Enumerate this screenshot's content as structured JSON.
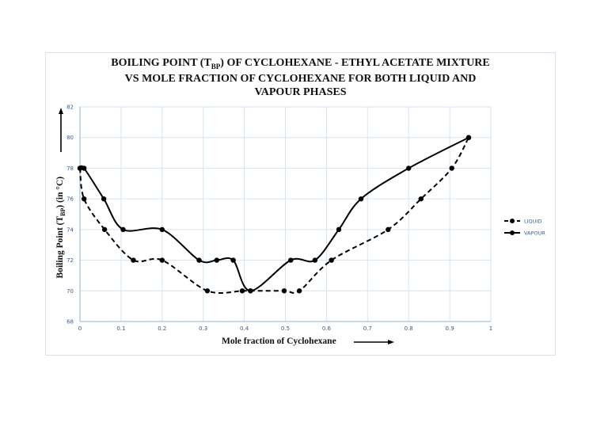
{
  "chart_data": {
    "type": "line",
    "title_parts": {
      "line1_pre": "BOILING POINT (T",
      "line1_sub": "BP",
      "line1_post": ") OF CYCLOHEXANE - ETHYL  ACETATE MIXTURE",
      "line2": "VS MOLE FRACTION OF CYCLOHEXANE FOR BOTH LIQUID AND",
      "line3": "VAPOUR PHASES"
    },
    "title": "BOILING POINT (TBP) OF CYCLOHEXANE - ETHYL ACETATE MIXTURE VS MOLE FRACTION OF CYCLOHEXANE FOR BOTH LIQUID AND VAPOUR PHASES",
    "xlabel": "Mole fraction of Cyclohexane",
    "ylabel_parts": {
      "pre": "Boiling Point (T",
      "sub": "BP",
      "post": ") (in °C)"
    },
    "ylabel": "Boiling Point (TBP) (in °C)",
    "xlim": [
      0,
      1
    ],
    "ylim": [
      68,
      82
    ],
    "xticks": [
      "0",
      "0.1",
      "0.2",
      "0.3",
      "0.4",
      "0.5",
      "0.6",
      "0.7",
      "0.8",
      "0.9",
      "1"
    ],
    "yticks": [
      "68",
      "70",
      "72",
      "74",
      "76",
      "78",
      "80",
      "82"
    ],
    "grid": true,
    "legend_position": "right",
    "series": [
      {
        "name": "LIQUID",
        "style": "dashed",
        "color": "#000000",
        "points": [
          [
            0.0,
            78
          ],
          [
            0.01,
            76
          ],
          [
            0.06,
            74
          ],
          [
            0.13,
            72
          ],
          [
            0.2,
            72
          ],
          [
            0.31,
            70
          ],
          [
            0.395,
            70
          ],
          [
            0.415,
            70
          ],
          [
            0.497,
            70
          ],
          [
            0.534,
            70
          ],
          [
            0.612,
            72
          ],
          [
            0.75,
            74
          ],
          [
            0.83,
            76
          ],
          [
            0.905,
            78
          ],
          [
            0.946,
            80
          ]
        ]
      },
      {
        "name": "VAPOUR",
        "style": "solid",
        "color": "#000000",
        "points": [
          [
            0.0,
            78
          ],
          [
            0.01,
            78
          ],
          [
            0.058,
            76
          ],
          [
            0.105,
            74
          ],
          [
            0.2,
            74
          ],
          [
            0.29,
            72
          ],
          [
            0.333,
            72
          ],
          [
            0.373,
            72
          ],
          [
            0.415,
            70
          ],
          [
            0.513,
            72
          ],
          [
            0.572,
            72
          ],
          [
            0.63,
            74
          ],
          [
            0.684,
            76
          ],
          [
            0.8,
            78
          ],
          [
            0.946,
            80
          ]
        ]
      }
    ]
  }
}
